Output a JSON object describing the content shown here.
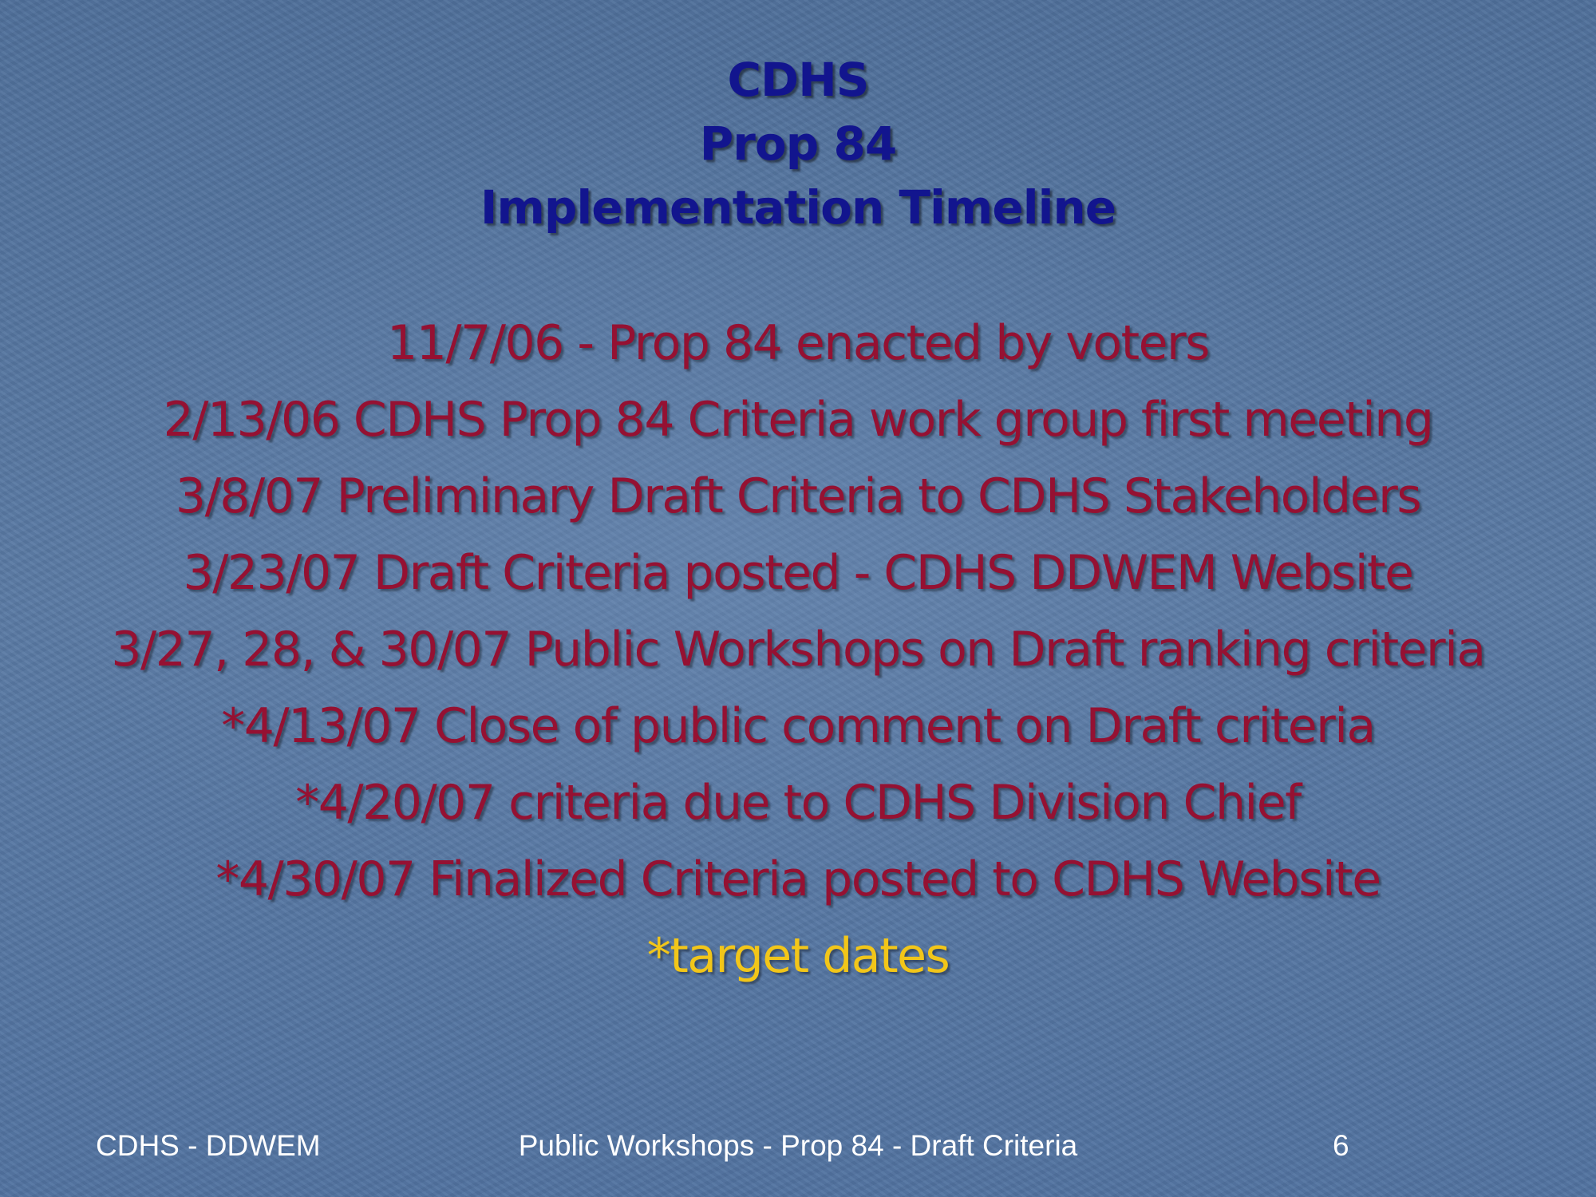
{
  "title": {
    "line1": "CDHS",
    "line2": "Prop 84",
    "line3": "Implementation Timeline"
  },
  "timeline": [
    "11/7/06 - Prop 84 enacted by voters",
    "2/13/06 CDHS Prop 84 Criteria work group first meeting",
    "3/8/07 Preliminary Draft Criteria to CDHS Stakeholders",
    "3/23/07 Draft Criteria posted - CDHS DDWEM Website",
    "3/27, 28, & 30/07 Public Workshops on Draft ranking criteria",
    "*4/13/07 Close of public comment on Draft criteria",
    "*4/20/07 criteria due to CDHS Division Chief",
    "*4/30/07 Finalized Criteria posted to CDHS Website"
  ],
  "note": "*target dates",
  "footer": {
    "left": "CDHS - DDWEM",
    "center": "Public Workshops - Prop 84 - Draft Criteria",
    "page_number": "6"
  },
  "colors": {
    "title": "#12158e",
    "body_text": "#951132",
    "note": "#f2c619",
    "footer": "#ffffff",
    "background": "#5676a0"
  }
}
